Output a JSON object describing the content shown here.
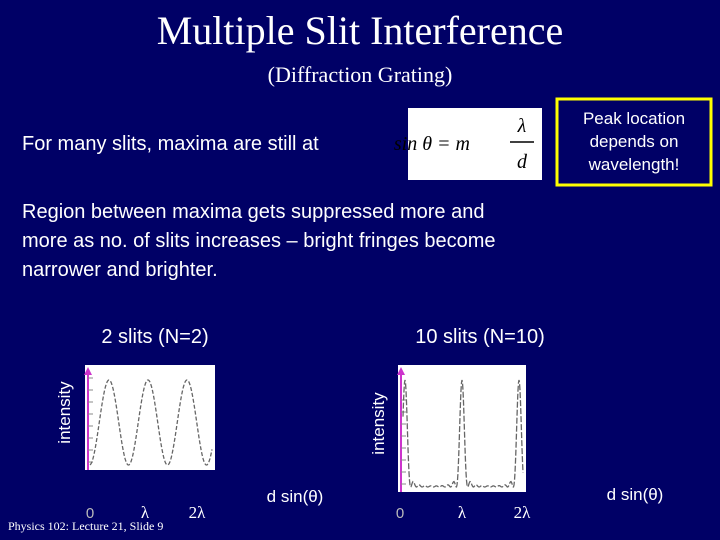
{
  "title": "Multiple Slit Interference",
  "subtitle": "(Diffraction Grating)",
  "intro": "For many slits, maxima are still at",
  "formula": {
    "lhs": "sin θ = m",
    "numerator": "λ",
    "denominator": "d"
  },
  "note": [
    "Peak location",
    "depends on",
    "wavelength!"
  ],
  "body": [
    "Region between maxima gets suppressed more and",
    "more as no. of slits increases – bright fringes become",
    "narrower and brighter."
  ],
  "plots": [
    {
      "title": "2 slits (N=2)",
      "ylabel": "intensity",
      "xlabel": "d sin(θ)",
      "xticks": [
        "0",
        "λ",
        "2λ"
      ]
    },
    {
      "title": "10 slits (N=10)",
      "ylabel": "intensity",
      "xlabel": "d sin(θ)",
      "xticks": [
        "0",
        "λ",
        "2λ"
      ]
    }
  ],
  "footer": "Physics 102: Lecture 21, Slide 9"
}
